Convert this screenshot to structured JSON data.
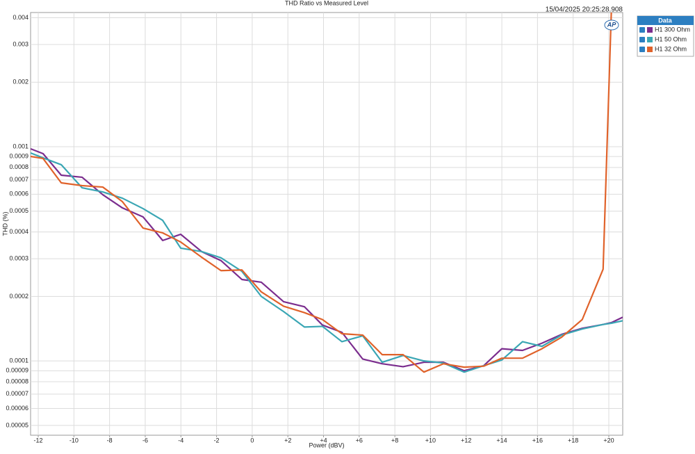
{
  "chart_data": {
    "type": "line",
    "title": "THD Ratio vs Measured Level",
    "timestamp": "15/04/2025 20:25:28.908",
    "logo": "AP",
    "x_label": "Power (dBV)",
    "y_label": "THD (%)",
    "log_y": true,
    "grid": true,
    "legend_title": "Data",
    "legend_position": "top-right",
    "xlim": [
      -12.43,
      20.78
    ],
    "ylim": [
      4.5e-05,
      0.00423
    ],
    "xticks": [
      -12,
      -10,
      -8,
      -6,
      -4,
      -2,
      0,
      {
        "value": 2,
        "label": "+2"
      },
      {
        "value": 4,
        "label": "+4"
      },
      {
        "value": 6,
        "label": "+6"
      },
      {
        "value": 8,
        "label": "+8"
      },
      {
        "value": 10,
        "label": "+10"
      },
      {
        "value": 12,
        "label": "+12"
      },
      {
        "value": 14,
        "label": "+14"
      },
      {
        "value": 16,
        "label": "+16"
      },
      {
        "value": 18,
        "label": "+18"
      },
      {
        "value": 20,
        "label": "+20"
      }
    ],
    "yticks": [
      0.004,
      0.003,
      0.002,
      0.001,
      0.0009,
      0.0008,
      0.0007,
      0.0006,
      0.0005,
      0.0004,
      0.0003,
      0.0002,
      0.0001,
      9e-05,
      8e-05,
      7e-05,
      6e-05,
      5e-05
    ],
    "x": [
      -12.43,
      -11.73,
      -10.71,
      -9.54,
      -8.38,
      -7.28,
      -6.12,
      -5.02,
      -4.01,
      -2.84,
      -1.75,
      -0.58,
      0.51,
      1.76,
      2.93,
      3.94,
      5.03,
      6.2,
      7.29,
      8.46,
      9.63,
      10.72,
      11.89,
      12.98,
      14.0,
      15.16,
      16.25,
      17.35,
      18.51,
      19.68,
      20.15,
      20.78
    ],
    "series": [
      {
        "name": "H1 300 Ohm",
        "color": "#7b2d8e",
        "values": [
          0.000978,
          0.000928,
          0.000736,
          0.00072,
          0.000597,
          0.000518,
          0.00047,
          0.000365,
          0.00039,
          0.000324,
          0.000294,
          0.00024,
          0.000233,
          0.000189,
          0.000179,
          0.000147,
          0.000136,
          0.000102,
          9.7e-05,
          9.4e-05,
          9.86e-05,
          9.86e-05,
          9e-05,
          9.5e-05,
          0.000114,
          0.000112,
          0.000121,
          0.000133,
          0.000142,
          0.000148,
          0.000151,
          0.00016
        ]
      },
      {
        "name": "H1 50 Ohm",
        "color": "#3aa6b4",
        "values": [
          0.000935,
          0.000887,
          0.000824,
          0.000643,
          0.000615,
          0.000575,
          0.000514,
          0.000453,
          0.000336,
          0.000324,
          0.000303,
          0.000262,
          0.0002,
          0.00017,
          0.000144,
          0.000145,
          0.000123,
          0.000131,
          9.86e-05,
          0.000106,
          0.0001,
          9.78e-05,
          8.87e-05,
          9.5e-05,
          0.000101,
          0.000123,
          0.000117,
          0.000132,
          0.000141,
          0.000148,
          0.00015,
          0.000154
        ]
      },
      {
        "name": "H1 32 Ohm",
        "color": "#e0622a",
        "values": [
          0.000901,
          0.000881,
          0.000678,
          0.000658,
          0.000648,
          0.000554,
          0.000417,
          0.000396,
          0.000359,
          0.000305,
          0.000264,
          0.000266,
          0.00021,
          0.00018,
          0.000168,
          0.000156,
          0.000134,
          0.000132,
          0.000107,
          0.000107,
          8.87e-05,
          9.7e-05,
          9.35e-05,
          9.45e-05,
          0.000103,
          0.000103,
          0.000114,
          0.000129,
          0.000156,
          0.000268,
          0.0045,
          null
        ]
      }
    ]
  }
}
